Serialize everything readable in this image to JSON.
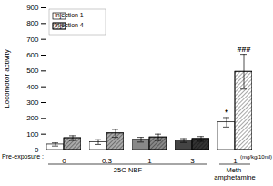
{
  "chart_data": {
    "type": "bar",
    "categories": [
      "0",
      "0.3",
      "1",
      "3",
      "1"
    ],
    "series": [
      {
        "name": "injection 1",
        "values": [
          35,
          50,
          65,
          60,
          175
        ],
        "errors": [
          10,
          15,
          15,
          12,
          30
        ],
        "colors": [
          "white",
          "white",
          "#888888",
          "#444444",
          "white"
        ]
      },
      {
        "name": "injection 4",
        "values": [
          75,
          105,
          80,
          70,
          495
        ],
        "errors": [
          15,
          25,
          20,
          15,
          110
        ],
        "colors": [
          "#aaaaaa",
          "#aaaaaa",
          "#888888",
          "#333333",
          "white"
        ]
      }
    ],
    "ylabel": "Locomotor activity",
    "ylim": [
      0,
      900
    ],
    "yticks": [
      0,
      100,
      200,
      300,
      400,
      500,
      600,
      700,
      800,
      900
    ],
    "legend": "upper left",
    "annotations": [
      {
        "text": "*",
        "series": "injection 1",
        "index": 4
      },
      {
        "text": "###",
        "series": "injection 4",
        "index": 4
      }
    ],
    "group_labels": [
      {
        "text": "25C-NBF",
        "from": 0,
        "to": 3
      },
      {
        "text": "Meth-\namphetamine",
        "from": 4,
        "to": 4
      }
    ],
    "units_label": "(mg/kg/10ml)",
    "pre_exposure_label": "Pre-exposure :"
  }
}
